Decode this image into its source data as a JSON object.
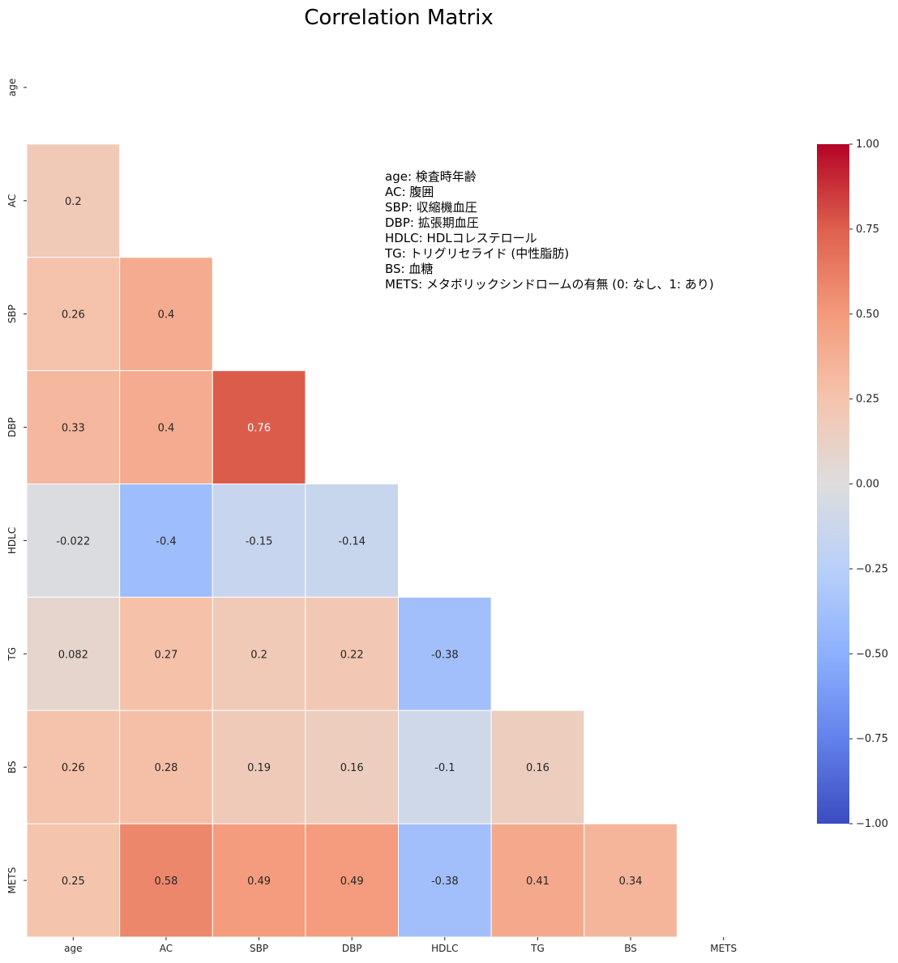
{
  "chart_data": {
    "type": "heatmap",
    "title": "Correlation Matrix",
    "variables": [
      "age",
      "AC",
      "SBP",
      "DBP",
      "HDLC",
      "TG",
      "BS",
      "METS"
    ],
    "mask": "upper-triangle-including-diagonal",
    "rows": [
      {
        "label": "age",
        "values": [
          null,
          null,
          null,
          null,
          null,
          null,
          null,
          null
        ]
      },
      {
        "label": "AC",
        "values": [
          0.2,
          null,
          null,
          null,
          null,
          null,
          null,
          null
        ]
      },
      {
        "label": "SBP",
        "values": [
          0.26,
          0.4,
          null,
          null,
          null,
          null,
          null,
          null
        ]
      },
      {
        "label": "DBP",
        "values": [
          0.33,
          0.4,
          0.76,
          null,
          null,
          null,
          null,
          null
        ]
      },
      {
        "label": "HDLC",
        "values": [
          -0.022,
          -0.4,
          -0.15,
          -0.14,
          null,
          null,
          null,
          null
        ]
      },
      {
        "label": "TG",
        "values": [
          0.082,
          0.27,
          0.2,
          0.22,
          -0.38,
          null,
          null,
          null
        ]
      },
      {
        "label": "BS",
        "values": [
          0.26,
          0.28,
          0.19,
          0.16,
          -0.1,
          0.16,
          null,
          null
        ]
      },
      {
        "label": "METS",
        "values": [
          0.25,
          0.58,
          0.49,
          0.49,
          -0.38,
          0.41,
          0.34,
          null
        ]
      }
    ],
    "colorbar": {
      "colormap": "coolwarm",
      "vmin": -1.0,
      "vmax": 1.0,
      "ticks": [
        "1.00",
        "0.75",
        "0.50",
        "0.25",
        "0.00",
        "−0.25",
        "−0.50",
        "−0.75",
        "−1.00"
      ]
    },
    "annotation_lines": [
      "age: 検査時年齢",
      "AC: 腹囲",
      "SBP: 収縮機血圧",
      "DBP: 拡張期血圧",
      "HDLC: HDLコレステロール",
      "TG: トリグリセライド (中性脂肪)",
      "BS: 血糖",
      "METS: メタボリックシンドロームの有無 (0: なし、1: あり)"
    ]
  }
}
